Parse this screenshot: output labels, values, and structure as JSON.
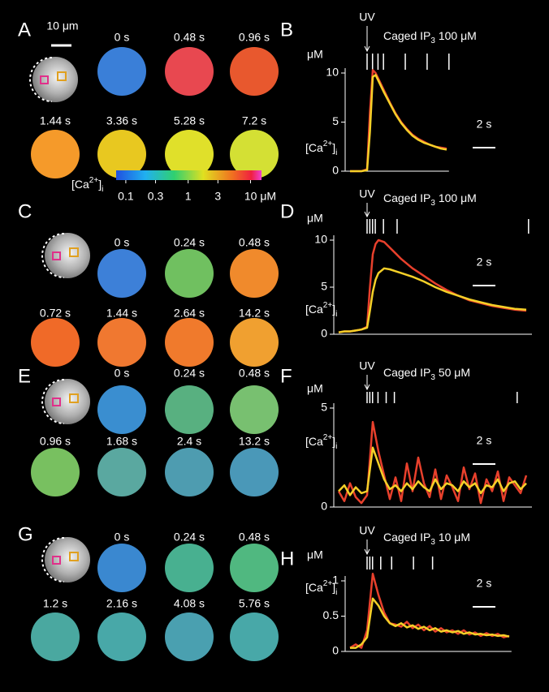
{
  "image_panels": [
    {
      "letter": "A",
      "scale_bar": "10 μm",
      "frames": [
        {
          "time": {
            "value": 0,
            "label": "0 s"
          },
          "color": "#3a7fd8"
        },
        {
          "time": {
            "value": 0.48,
            "label": "0.48 s"
          },
          "color": "#e84850"
        },
        {
          "time": {
            "value": 0.96,
            "label": "0.96 s"
          },
          "color": "#e8582e"
        },
        {
          "time": {
            "value": 1.44,
            "label": "1.44 s"
          },
          "color": "#f59a2a"
        },
        {
          "time": {
            "value": 3.36,
            "label": "3.36 s"
          },
          "color": "#e8c820"
        },
        {
          "time": {
            "value": 5.28,
            "label": "5.28 s"
          },
          "color": "#e0e02a"
        },
        {
          "time": {
            "value": 7.2,
            "label": "7.2 s"
          },
          "color": "#d4e034"
        }
      ]
    },
    {
      "letter": "C",
      "frames": [
        {
          "time": {
            "value": 0,
            "label": "0 s"
          },
          "color": "#3d80d8"
        },
        {
          "time": {
            "value": 0.24,
            "label": "0.24 s"
          },
          "color": "#70c060"
        },
        {
          "time": {
            "value": 0.48,
            "label": "0.48 s"
          },
          "color": "#f08a2c"
        },
        {
          "time": {
            "value": 0.72,
            "label": "0.72 s"
          },
          "color": "#f06a28"
        },
        {
          "time": {
            "value": 1.44,
            "label": "1.44 s"
          },
          "color": "#f07830"
        },
        {
          "time": {
            "value": 2.64,
            "label": "2.64 s"
          },
          "color": "#f07a2c"
        },
        {
          "time": {
            "value": 14.2,
            "label": "14.2 s"
          },
          "color": "#f0a030"
        }
      ]
    },
    {
      "letter": "E",
      "frames": [
        {
          "time": {
            "value": 0,
            "label": "0 s"
          },
          "color": "#3a8ed0"
        },
        {
          "time": {
            "value": 0.24,
            "label": "0.24 s"
          },
          "color": "#58b080"
        },
        {
          "time": {
            "value": 0.48,
            "label": "0.48 s"
          },
          "color": "#78c070"
        },
        {
          "time": {
            "value": 0.96,
            "label": "0.96 s"
          },
          "color": "#78c060"
        },
        {
          "time": {
            "value": 1.68,
            "label": "1.68 s"
          },
          "color": "#5aa8a0"
        },
        {
          "time": {
            "value": 2.4,
            "label": "2.4 s"
          },
          "color": "#4e9cb0"
        },
        {
          "time": {
            "value": 13.2,
            "label": "13.2 s"
          },
          "color": "#4a98b8"
        }
      ]
    },
    {
      "letter": "G",
      "frames": [
        {
          "time": {
            "value": 0,
            "label": "0 s"
          },
          "color": "#3a88d0"
        },
        {
          "time": {
            "value": 0.24,
            "label": "0.24 s"
          },
          "color": "#48b090"
        },
        {
          "time": {
            "value": 0.48,
            "label": "0.48 s"
          },
          "color": "#50b880"
        },
        {
          "time": {
            "value": 1.2,
            "label": "1.2 s"
          },
          "color": "#4aa8a0"
        },
        {
          "time": {
            "value": 2.16,
            "label": "2.16 s"
          },
          "color": "#48a8a8"
        },
        {
          "time": {
            "value": 4.08,
            "label": "4.08 s"
          },
          "color": "#4aa0b0"
        },
        {
          "time": {
            "value": 5.76,
            "label": "5.76 s"
          },
          "color": "#48a8a8"
        }
      ]
    }
  ],
  "colorbar": {
    "label": {
      "pre": "[Ca",
      "sup": "2+",
      "post": "]",
      "sub": "i"
    },
    "lim": [
      0.07,
      15
    ],
    "log": true,
    "ticks": [
      0.1,
      0.3,
      1,
      3,
      {
        "value": 10,
        "label": "10 μM"
      }
    ]
  },
  "chart_data": [
    {
      "type": "line",
      "letter": "B",
      "marker": "UV",
      "caption": {
        "pre": "Caged IP",
        "sub": "3",
        "post": " 100 μM"
      },
      "unit": "μM",
      "ylabel": {
        "pre": "[Ca",
        "sup": "2+",
        "post": "]",
        "sub": "i"
      },
      "scale_bar": {
        "value": 2,
        "label": "2 s"
      },
      "xlim": [
        -1.5,
        7.2
      ],
      "ylim": [
        0,
        10
      ],
      "yticks": [
        0,
        5,
        10
      ],
      "x": [
        -1.5,
        -1,
        -0.5,
        0,
        0.25,
        0.5,
        0.75,
        1,
        1.5,
        2,
        2.5,
        3,
        3.5,
        4,
        4.5,
        5,
        5.5,
        6,
        6.5,
        7
      ],
      "series": [
        {
          "color": "#e8402c",
          "values": [
            0,
            0,
            0,
            0.2,
            6,
            10.3,
            10,
            9.4,
            8.2,
            7,
            5.9,
            5,
            4.3,
            3.7,
            3.3,
            3,
            2.7,
            2.5,
            2.4,
            2.3
          ]
        },
        {
          "color": "#f5d028",
          "values": [
            0,
            0,
            0,
            0.1,
            4,
            9.6,
            9.8,
            9.2,
            8,
            6.9,
            5.8,
            4.9,
            4.2,
            3.6,
            3.2,
            2.9,
            2.7,
            2.5,
            2.3,
            2.2
          ]
        }
      ]
    },
    {
      "type": "line",
      "letter": "D",
      "marker": "UV",
      "caption": {
        "pre": "Caged IP",
        "sub": "3",
        "post": " 100 μM"
      },
      "unit": "μM",
      "ylabel": {
        "pre": "[Ca",
        "sup": "2+",
        "post": "]",
        "sub": "i"
      },
      "scale_bar": {
        "value": 2,
        "label": "2 s"
      },
      "xlim": [
        -2.5,
        14.5
      ],
      "ylim": [
        0,
        10
      ],
      "yticks": [
        0,
        5,
        10
      ],
      "x": [
        -2.5,
        -2,
        -1.5,
        -1,
        -0.5,
        0,
        0.25,
        0.5,
        0.75,
        1,
        1.5,
        2,
        2.5,
        3,
        4,
        5,
        6,
        7,
        8,
        9,
        10,
        11,
        12,
        13,
        14
      ],
      "series": [
        {
          "color": "#e8402c",
          "values": [
            0.2,
            0.3,
            0.3,
            0.4,
            0.5,
            0.8,
            5,
            8.5,
            9.6,
            10,
            9.8,
            9.2,
            8.6,
            8,
            7,
            6.2,
            5.4,
            4.7,
            4.1,
            3.6,
            3.3,
            3,
            2.8,
            2.6,
            2.5
          ]
        },
        {
          "color": "#f5d028",
          "values": [
            0.2,
            0.3,
            0.3,
            0.4,
            0.5,
            0.7,
            2.5,
            4.5,
            5.8,
            6.5,
            7,
            6.9,
            6.7,
            6.5,
            6.1,
            5.6,
            5,
            4.5,
            4.1,
            3.7,
            3.4,
            3.1,
            2.9,
            2.7,
            2.6
          ]
        }
      ]
    },
    {
      "type": "line",
      "letter": "F",
      "marker": "UV",
      "caption": {
        "pre": "Caged IP",
        "sub": "3",
        "post": " 50 μM"
      },
      "unit": "μM",
      "ylabel": {
        "pre": "[Ca",
        "sup": "2+",
        "post": "]",
        "sub": "i"
      },
      "scale_bar": {
        "value": 2,
        "label": "2 s"
      },
      "xlim": [
        -2.5,
        14.5
      ],
      "ylim": [
        0,
        5
      ],
      "yticks": [
        0,
        5
      ],
      "x": [
        -2.5,
        -2,
        -1.5,
        -1,
        -0.5,
        0,
        0.5,
        1,
        1.5,
        2,
        2.5,
        3,
        3.5,
        4,
        4.5,
        5,
        5.5,
        6,
        6.5,
        7,
        7.5,
        8,
        8.5,
        9,
        9.5,
        10,
        10.5,
        11,
        11.5,
        12,
        12.5,
        13,
        13.5,
        14
      ],
      "series": [
        {
          "color": "#e8402c",
          "values": [
            0.8,
            0.3,
            1.2,
            0.5,
            0.2,
            0.6,
            4.3,
            2.8,
            1.6,
            0.4,
            1.5,
            0.3,
            2.2,
            0.8,
            2.5,
            1.2,
            0.5,
            1.9,
            0.4,
            1.6,
            1.0,
            0.3,
            2.0,
            0.9,
            1.7,
            0.2,
            1.4,
            0.8,
            1.8,
            0.3,
            1.5,
            1.1,
            0.7,
            1.6
          ]
        },
        {
          "color": "#f5d028",
          "values": [
            0.8,
            1.1,
            0.6,
            1.0,
            0.7,
            0.8,
            3.0,
            2.2,
            1.4,
            0.9,
            1.1,
            0.8,
            1.2,
            0.9,
            1.3,
            1.0,
            0.8,
            1.4,
            0.9,
            1.2,
            1.1,
            0.8,
            1.3,
            1.0,
            1.2,
            0.7,
            1.1,
            1.0,
            1.4,
            0.8,
            1.2,
            1.3,
            0.9,
            1.2
          ]
        }
      ]
    },
    {
      "type": "line",
      "letter": "H",
      "marker": "UV",
      "caption": {
        "pre": "Caged IP",
        "sub": "3",
        "post": " 10 μM"
      },
      "unit": "μM",
      "ylabel": {
        "pre": "[Ca",
        "sup": "2+",
        "post": "]",
        "sub": "i"
      },
      "scale_bar": {
        "value": 2,
        "label": "2 s"
      },
      "xlim": [
        -1.5,
        12.7
      ],
      "ylim": [
        0,
        1
      ],
      "yticks": [
        0,
        0.5,
        1
      ],
      "x": [
        -1.5,
        -1,
        -0.5,
        0,
        0.5,
        1,
        1.5,
        2,
        2.5,
        3,
        3.5,
        4,
        4.5,
        5,
        5.5,
        6,
        6.5,
        7,
        7.5,
        8,
        8.5,
        9,
        9.5,
        10,
        10.5,
        11,
        11.5,
        12,
        12.5
      ],
      "series": [
        {
          "color": "#e8402c",
          "values": [
            0.05,
            0.1,
            0.05,
            0.3,
            1.1,
            0.8,
            0.55,
            0.4,
            0.38,
            0.35,
            0.42,
            0.33,
            0.38,
            0.3,
            0.36,
            0.28,
            0.33,
            0.27,
            0.3,
            0.25,
            0.3,
            0.24,
            0.27,
            0.22,
            0.26,
            0.22,
            0.25,
            0.2,
            0.22
          ]
        },
        {
          "color": "#f5d028",
          "values": [
            0.05,
            0.05,
            0.1,
            0.2,
            0.75,
            0.65,
            0.5,
            0.4,
            0.36,
            0.4,
            0.34,
            0.37,
            0.32,
            0.35,
            0.3,
            0.33,
            0.28,
            0.3,
            0.27,
            0.29,
            0.25,
            0.27,
            0.24,
            0.25,
            0.23,
            0.24,
            0.22,
            0.23,
            0.21
          ]
        }
      ]
    }
  ]
}
